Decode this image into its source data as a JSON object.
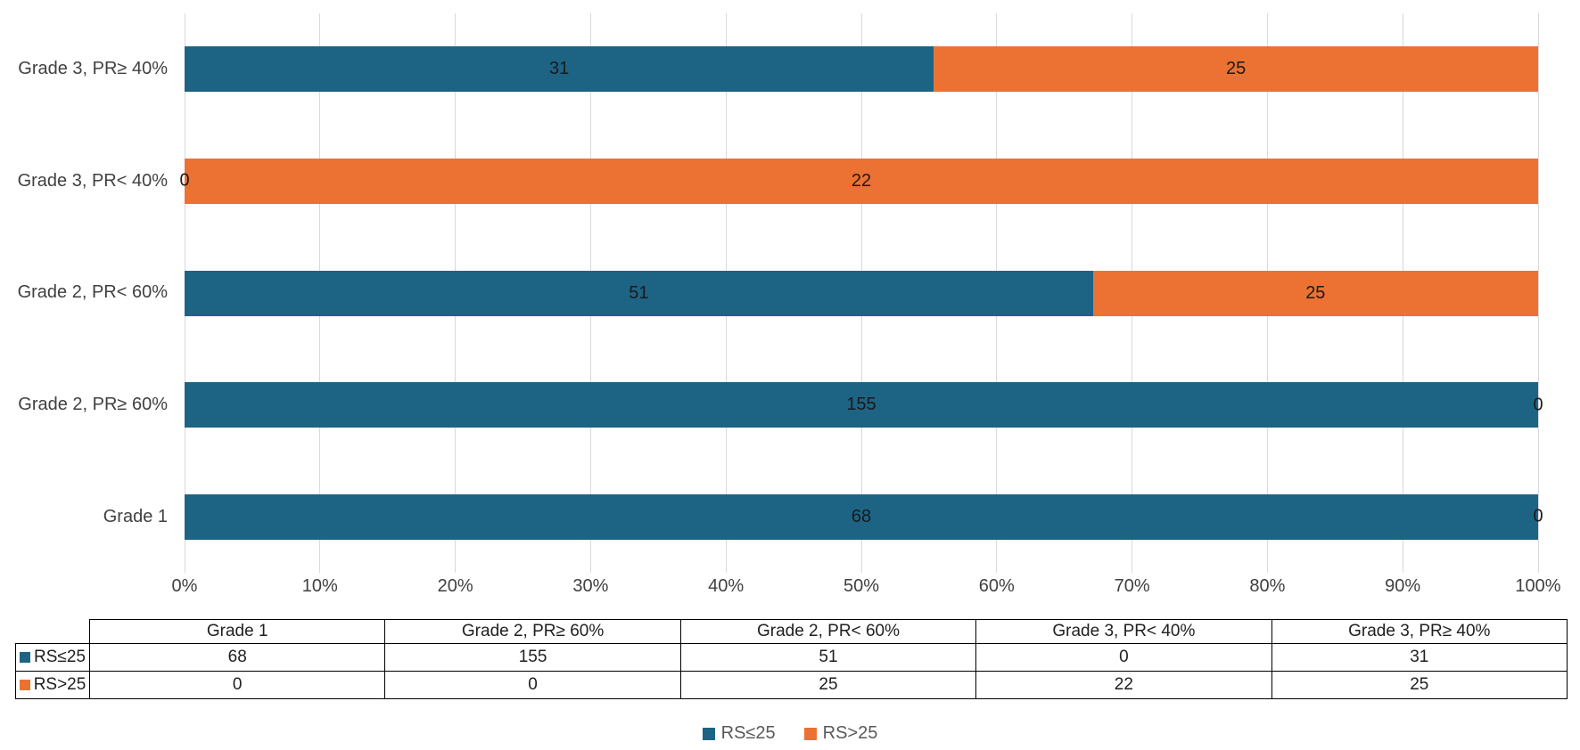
{
  "chart_data": {
    "type": "bar",
    "variant": "horizontal-100pct-stacked",
    "title": "",
    "xlabel": "",
    "ylabel": "",
    "grid": "vertical-on",
    "legend_position": "bottom",
    "categories_top_to_bottom": [
      "Grade 3, PR≥ 40%",
      "Grade 3, PR< 40%",
      "Grade 2, PR< 60%",
      "Grade 2, PR≥ 60%",
      "Grade 1"
    ],
    "series": [
      {
        "name": "RS≤25",
        "color": "#1d6384",
        "values_by_category": [
          31,
          0,
          51,
          155,
          68
        ]
      },
      {
        "name": "RS>25",
        "color": "#ec7233",
        "values_by_category": [
          25,
          22,
          25,
          0,
          0
        ]
      }
    ],
    "x_axis": {
      "min": 0,
      "max": 1,
      "ticks": [
        "0%",
        "10%",
        "20%",
        "30%",
        "40%",
        "50%",
        "60%",
        "70%",
        "80%",
        "90%",
        "100%"
      ]
    }
  },
  "data_table": {
    "columns": [
      "Grade 1",
      "Grade 2, PR≥ 60%",
      "Grade 2, PR< 60%",
      "Grade 3, PR< 40%",
      "Grade 3, PR≥ 40%"
    ],
    "rows": [
      {
        "label": "RS≤25",
        "color": "#1d6384",
        "values": [
          "68",
          "155",
          "51",
          "0",
          "31"
        ]
      },
      {
        "label": "RS>25",
        "color": "#ec7233",
        "values": [
          "0",
          "0",
          "25",
          "22",
          "25"
        ]
      }
    ]
  },
  "legend": {
    "items": [
      {
        "label": "RS≤25",
        "color": "#1d6384"
      },
      {
        "label": "RS>25",
        "color": "#ec7233"
      }
    ]
  },
  "colors": {
    "series_blue": "#1d6384",
    "series_orange": "#ec7233",
    "gridline": "#d9d9d9",
    "axis_text": "#404040",
    "bar_label_text": "#1a1a1a",
    "table_border": "#000000",
    "legend_text": "#595959"
  }
}
